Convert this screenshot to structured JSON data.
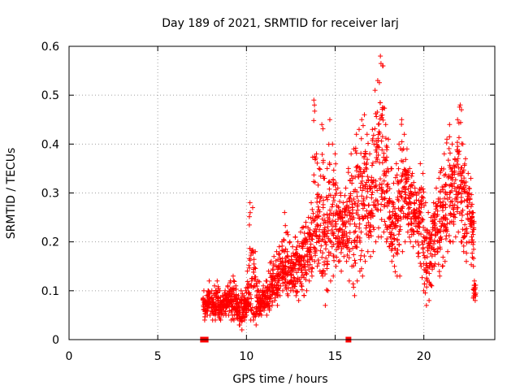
{
  "chart_data": {
    "type": "scatter",
    "title": "Day 189 of 2021, SRMTID for receiver larj",
    "xlabel": "GPS time / hours",
    "ylabel": "SRMTID / TECUs",
    "xlim": [
      0,
      24
    ],
    "ylim": [
      0,
      0.6
    ],
    "xticks": [
      0,
      5,
      10,
      15,
      20
    ],
    "yticks": [
      0,
      0.1,
      0.2,
      0.3,
      0.4,
      0.5,
      0.6
    ],
    "xtick_labels": [
      "0",
      "5",
      "10",
      "15",
      "20"
    ],
    "ytick_labels": [
      "0",
      "0.1",
      "0.2",
      "0.3",
      "0.4",
      "0.5",
      "0.6"
    ],
    "grid": true,
    "marker": "+",
    "color": "#ff0000",
    "gap_markers": [
      {
        "x": 7.55,
        "y": 0
      },
      {
        "x": 7.7,
        "y": 0
      },
      {
        "x": 15.75,
        "y": 0
      }
    ],
    "series": [
      {
        "name": "SRMTID",
        "x": [
          7.6,
          7.75,
          7.9,
          8.05,
          8.2,
          8.35,
          8.5,
          8.65,
          8.8,
          8.95,
          9.1,
          9.25,
          9.4,
          9.55,
          9.7,
          9.85,
          9.95,
          10.05,
          10.2,
          10.35,
          10.5,
          10.65,
          10.8,
          10.95,
          11.1,
          11.25,
          11.4,
          11.55,
          11.7,
          11.85,
          12.0,
          12.15,
          12.3,
          12.45,
          12.6,
          12.75,
          12.9,
          13.05,
          13.2,
          13.35,
          13.5,
          13.65,
          13.8,
          13.95,
          14.1,
          14.25,
          14.4,
          14.55,
          14.7,
          14.85,
          15.0,
          15.15,
          15.3,
          15.45,
          15.6,
          15.75,
          15.9,
          16.05,
          16.2,
          16.35,
          16.5,
          16.65,
          16.8,
          16.95,
          17.1,
          17.25,
          17.4,
          17.55,
          17.7,
          17.85,
          18.0,
          18.15,
          18.3,
          18.45,
          18.6,
          18.75,
          18.9,
          19.05,
          19.2,
          19.35,
          19.5,
          19.65,
          19.8,
          19.95,
          20.1,
          20.25,
          20.4,
          20.55,
          20.7,
          20.85,
          21.0,
          21.15,
          21.3,
          21.45,
          21.6,
          21.75,
          21.9,
          22.05,
          22.2,
          22.35,
          22.5,
          22.65,
          22.75,
          22.85
        ],
        "low": [
          0.04,
          0.05,
          0.05,
          0.04,
          0.04,
          0.05,
          0.04,
          0.05,
          0.05,
          0.05,
          0.04,
          0.04,
          0.05,
          0.03,
          0.02,
          0.04,
          0.05,
          0.06,
          0.04,
          0.04,
          0.03,
          0.05,
          0.05,
          0.06,
          0.05,
          0.06,
          0.07,
          0.08,
          0.07,
          0.09,
          0.1,
          0.11,
          0.09,
          0.1,
          0.1,
          0.09,
          0.08,
          0.11,
          0.09,
          0.1,
          0.12,
          0.13,
          0.16,
          0.15,
          0.14,
          0.13,
          0.07,
          0.1,
          0.12,
          0.13,
          0.15,
          0.16,
          0.14,
          0.17,
          0.16,
          0.12,
          0.15,
          0.09,
          0.12,
          0.14,
          0.13,
          0.16,
          0.18,
          0.17,
          0.18,
          0.2,
          0.21,
          0.21,
          0.22,
          0.2,
          0.19,
          0.16,
          0.15,
          0.13,
          0.13,
          0.18,
          0.2,
          0.22,
          0.2,
          0.19,
          0.2,
          0.17,
          0.15,
          0.1,
          0.07,
          0.08,
          0.11,
          0.15,
          0.18,
          0.13,
          0.15,
          0.16,
          0.18,
          0.2,
          0.2,
          0.21,
          0.22,
          0.2,
          0.18,
          0.16,
          0.2,
          0.21,
          0.15,
          0.08
        ],
        "high": [
          0.1,
          0.09,
          0.12,
          0.1,
          0.11,
          0.12,
          0.1,
          0.09,
          0.1,
          0.11,
          0.12,
          0.13,
          0.11,
          0.09,
          0.1,
          0.09,
          0.1,
          0.14,
          0.28,
          0.27,
          0.18,
          0.12,
          0.1,
          0.11,
          0.12,
          0.14,
          0.16,
          0.17,
          0.18,
          0.19,
          0.2,
          0.26,
          0.22,
          0.2,
          0.19,
          0.21,
          0.2,
          0.22,
          0.23,
          0.24,
          0.25,
          0.28,
          0.49,
          0.38,
          0.35,
          0.44,
          0.33,
          0.35,
          0.45,
          0.4,
          0.38,
          0.31,
          0.3,
          0.28,
          0.31,
          0.35,
          0.38,
          0.39,
          0.42,
          0.43,
          0.45,
          0.46,
          0.42,
          0.38,
          0.43,
          0.51,
          0.53,
          0.58,
          0.56,
          0.44,
          0.41,
          0.35,
          0.32,
          0.36,
          0.4,
          0.45,
          0.42,
          0.39,
          0.35,
          0.34,
          0.31,
          0.3,
          0.36,
          0.34,
          0.28,
          0.26,
          0.25,
          0.28,
          0.31,
          0.33,
          0.35,
          0.38,
          0.41,
          0.44,
          0.4,
          0.37,
          0.45,
          0.48,
          0.4,
          0.37,
          0.34,
          0.33,
          0.26,
          0.12
        ],
        "points_per_hour_bin": 20,
        "approximate_center": [
          0.07,
          0.07,
          0.08,
          0.07,
          0.07,
          0.08,
          0.07,
          0.07,
          0.08,
          0.08,
          0.08,
          0.08,
          0.08,
          0.06,
          0.06,
          0.06,
          0.07,
          0.09,
          0.12,
          0.12,
          0.09,
          0.08,
          0.07,
          0.08,
          0.08,
          0.09,
          0.11,
          0.12,
          0.12,
          0.13,
          0.14,
          0.16,
          0.14,
          0.14,
          0.14,
          0.14,
          0.14,
          0.16,
          0.16,
          0.17,
          0.18,
          0.2,
          0.27,
          0.25,
          0.24,
          0.26,
          0.2,
          0.22,
          0.26,
          0.25,
          0.26,
          0.23,
          0.22,
          0.22,
          0.23,
          0.23,
          0.26,
          0.24,
          0.27,
          0.28,
          0.29,
          0.3,
          0.3,
          0.27,
          0.3,
          0.34,
          0.36,
          0.38,
          0.38,
          0.31,
          0.29,
          0.25,
          0.23,
          0.24,
          0.26,
          0.31,
          0.31,
          0.3,
          0.27,
          0.26,
          0.25,
          0.23,
          0.25,
          0.22,
          0.17,
          0.17,
          0.18,
          0.21,
          0.24,
          0.23,
          0.25,
          0.27,
          0.29,
          0.32,
          0.3,
          0.29,
          0.33,
          0.34,
          0.29,
          0.26,
          0.27,
          0.27,
          0.21,
          0.1
        ]
      }
    ]
  }
}
